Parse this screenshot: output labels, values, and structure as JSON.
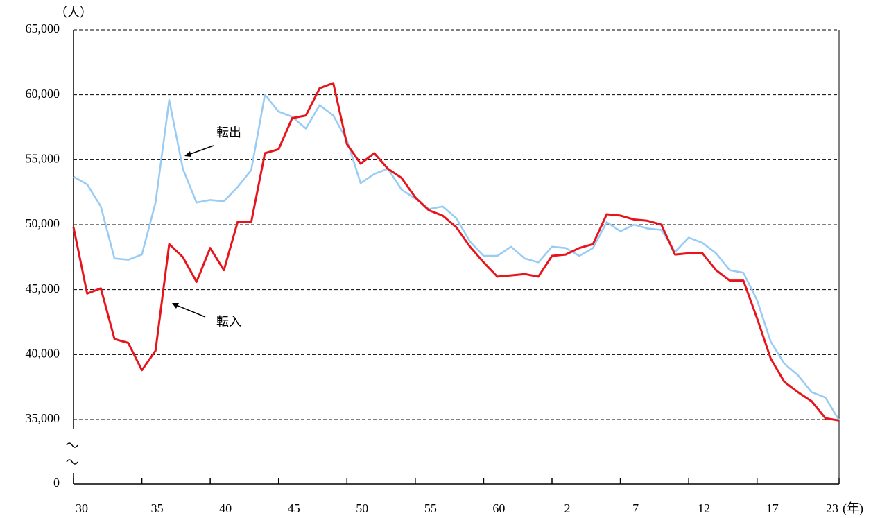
{
  "chart_data": {
    "type": "line",
    "y_unit": "（人）",
    "x_label": "(年)",
    "categories": [
      "30",
      null,
      null,
      null,
      null,
      "35",
      null,
      null,
      null,
      null,
      "40",
      null,
      null,
      null,
      null,
      "45",
      null,
      null,
      null,
      null,
      "50",
      null,
      null,
      null,
      null,
      "55",
      null,
      null,
      null,
      null,
      "60",
      null,
      null,
      null,
      null,
      "2",
      null,
      null,
      null,
      null,
      "7",
      null,
      null,
      null,
      null,
      "12",
      null,
      null,
      null,
      null,
      "17",
      null,
      null,
      null,
      null,
      null,
      "23"
    ],
    "series": [
      {
        "name": "転出",
        "color": "#99ccf5",
        "values": [
          53700,
          53100,
          51400,
          47400,
          47300,
          47700,
          51700,
          59600,
          54300,
          51700,
          51900,
          51800,
          52900,
          54200,
          60000,
          58700,
          58300,
          57400,
          59200,
          58400,
          56500,
          53200,
          53900,
          54300,
          52700,
          52000,
          51200,
          51400,
          50500,
          48700,
          47600,
          47600,
          48300,
          47400,
          47100,
          48300,
          48200,
          47600,
          48200,
          50200,
          49500,
          50000,
          49700,
          49600,
          47900,
          49000,
          48600,
          47800,
          46500,
          46300,
          44200,
          41000,
          39300,
          38400,
          37100,
          36700,
          34600
        ]
      },
      {
        "name": "転入",
        "color": "#e8141c",
        "values": [
          49800,
          44700,
          45100,
          41200,
          40900,
          38800,
          40300,
          48500,
          47500,
          45600,
          48200,
          46500,
          50200,
          50200,
          55500,
          55800,
          58200,
          58400,
          60500,
          60900,
          56200,
          54700,
          55500,
          54300,
          53600,
          52100,
          51100,
          50700,
          49800,
          48300,
          47100,
          46000,
          46100,
          46200,
          46000,
          47600,
          47700,
          48200,
          48500,
          50800,
          50700,
          50400,
          50300,
          50000,
          47700,
          47800,
          47800,
          46500,
          45700,
          45700,
          42800,
          39700,
          37900,
          37100,
          36400,
          35100,
          34500
        ]
      }
    ],
    "ylim": [
      0,
      65000
    ],
    "yticks": [
      0,
      {
        "value": 35000,
        "label": "35,000"
      },
      {
        "value": 40000,
        "label": "40,000"
      },
      {
        "value": 45000,
        "label": "45,000"
      },
      {
        "value": 50000,
        "label": "50,000"
      },
      {
        "value": 55000,
        "label": "55,000"
      },
      {
        "value": 60000,
        "label": "60,000"
      },
      {
        "value": 65000,
        "label": "65,000"
      }
    ],
    "axis_break": true,
    "grid": true
  }
}
